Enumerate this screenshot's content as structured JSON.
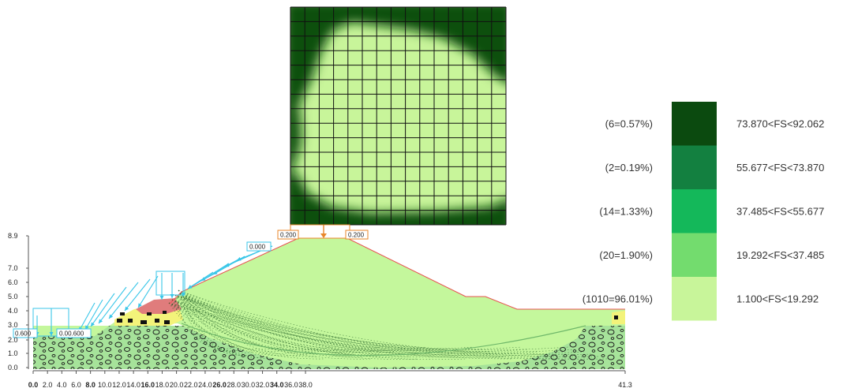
{
  "grid": {
    "rows": 15,
    "cols": 15,
    "base_color": "#c8f59a",
    "dark_color": "#0c4f10"
  },
  "loads": {
    "crest": [
      "0.200",
      "0.200"
    ],
    "slope": "0.000",
    "toe": [
      "0.600",
      "0.00.600"
    ]
  },
  "axes": {
    "y_ticks": [
      "0.0",
      "1.0",
      "2.0",
      "3.0",
      "4.0",
      "5.0",
      "6.0",
      "7.0",
      "8.9"
    ],
    "x_ticks": [
      "0.0",
      "2.0",
      "4.0",
      "6.0",
      "8.0",
      "10.0",
      "12.0",
      "14.0",
      "16.0",
      "18.0",
      "20.0",
      "22.0",
      "24.0",
      "26.0",
      "28.0",
      "30.0",
      "32.0",
      "34.0",
      "36.0",
      "38.0",
      "41.3"
    ]
  },
  "legend": [
    {
      "count": "(6=0.57%)",
      "range": "73.870<FS<92.062",
      "color": "#0b4a0f"
    },
    {
      "count": "(2=0.19%)",
      "range": "55.677<FS<73.870",
      "color": "#138040"
    },
    {
      "count": "(14=1.33%)",
      "range": "37.485<FS<55.677",
      "color": "#14b85a"
    },
    {
      "count": "(20=1.90%)",
      "range": "19.292<FS<37.485",
      "color": "#73dc6e"
    },
    {
      "count": "(1010=96.01%)",
      "range": "1.100<FS<19.292",
      "color": "#c8f59a"
    }
  ],
  "colors": {
    "slope_fill": "#c4f79c",
    "foundation": "#a6e39a",
    "soft_layer": "#f3f37a",
    "critical_wedge": "#e07c7c",
    "load_arrow": "#39c6e8",
    "crest_load": "#e8862a",
    "slip_line": "#1c5a22",
    "surface_line": "#e85050"
  }
}
